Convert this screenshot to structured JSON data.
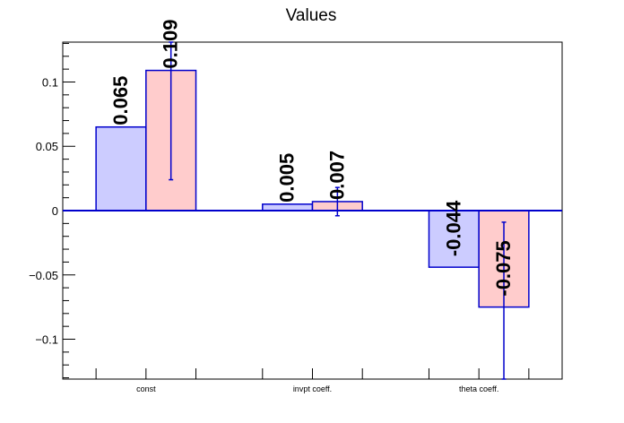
{
  "chart_data": {
    "type": "bar",
    "title": "Values",
    "categories": [
      "const",
      "invpt coeff.",
      "theta coeff."
    ],
    "series": [
      {
        "values": [
          0.065,
          0.005,
          -0.044
        ],
        "labels": [
          "0.065",
          "0.005",
          "-0.044"
        ],
        "color": "#ccccff"
      },
      {
        "values": [
          0.109,
          0.007,
          -0.075
        ],
        "labels": [
          "0.109",
          "0.007",
          "-0.075"
        ],
        "errors": [
          0.085,
          0.011,
          0.066
        ],
        "color": "#ffcccc"
      }
    ],
    "edge_color": "#0000cc",
    "ylim": [
      -0.131,
      0.131
    ],
    "yticks": [
      {
        "value": 0.1,
        "label": "0.1"
      },
      {
        "value": 0.05,
        "label": "0.05"
      },
      {
        "value": 0,
        "label": "0"
      },
      {
        "value": -0.05,
        "label": "−0.05"
      },
      {
        "value": -0.1,
        "label": "−0.1"
      }
    ],
    "xlabel": "",
    "ylabel": "",
    "grid": false
  }
}
